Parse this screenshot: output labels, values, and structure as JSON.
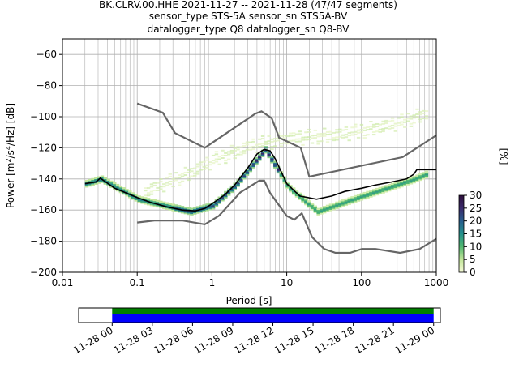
{
  "title": {
    "line1": "BK.CLRV.00.HHE   2021-11-27 -- 2021-11-28  (47/47 segments)",
    "line2": "sensor_type STS-5A sensor_sn STS5A-BV",
    "line3": "datalogger_type Q8 datalogger_sn Q8-BV"
  },
  "chart_data": [
    {
      "type": "heatmap",
      "subtype": "probabilistic power spectral density",
      "xlabel": "Period [s]",
      "ylabel_parts": [
        "Power [m",
        "2",
        "/s",
        "4",
        "/Hz] [dB]"
      ],
      "x_scale": "log",
      "xlim": [
        0.01,
        1000
      ],
      "ylim": [
        -200,
        -50
      ],
      "x_ticks": [
        0.01,
        0.1,
        1,
        10,
        100,
        1000
      ],
      "x_tick_labels": [
        "0.01",
        "0.1",
        "1",
        "10",
        "100",
        "1000"
      ],
      "y_ticks": [
        -200,
        -180,
        -160,
        -140,
        -120,
        -100,
        -80,
        -60
      ],
      "y_tick_labels": [
        "−200",
        "−180",
        "−160",
        "−140",
        "−120",
        "−100",
        "−80",
        "−60"
      ],
      "grid": true,
      "colorbar": {
        "label": "[%]",
        "range": [
          0,
          30
        ],
        "ticks": [
          0,
          5,
          10,
          15,
          20,
          25,
          30
        ],
        "tick_labels": [
          "0",
          "5",
          "10",
          "15",
          "20",
          "25",
          "30"
        ],
        "colors": [
          "#f7fbd8",
          "#c2e69a",
          "#52b870",
          "#23918c",
          "#275d8d",
          "#3a2a6b",
          "#2d0f3c"
        ]
      },
      "series": [
        {
          "role": "noise-model-high",
          "color": "#666666",
          "points": [
            [
              0.1,
              -91.5
            ],
            [
              0.22,
              -97.4
            ],
            [
              0.32,
              -110.5
            ],
            [
              0.8,
              -120
            ],
            [
              3.8,
              -98
            ],
            [
              4.6,
              -96.5
            ],
            [
              6.3,
              -101
            ],
            [
              7.9,
              -113.5
            ],
            [
              15.4,
              -120
            ],
            [
              20,
              -138.5
            ],
            [
              354.8,
              -126
            ],
            [
              1000,
              -112
            ]
          ]
        },
        {
          "role": "noise-model-low",
          "color": "#666666",
          "points": [
            [
              0.1,
              -168
            ],
            [
              0.17,
              -166.7
            ],
            [
              0.4,
              -166.7
            ],
            [
              0.8,
              -169.2
            ],
            [
              1.24,
              -163.7
            ],
            [
              2.4,
              -148.6
            ],
            [
              4.3,
              -141.1
            ],
            [
              5.0,
              -141.1
            ],
            [
              6.0,
              -149.0
            ],
            [
              10,
              -163.8
            ],
            [
              12.6,
              -166.2
            ],
            [
              15.9,
              -162.1
            ],
            [
              21.9,
              -177.5
            ],
            [
              31.6,
              -185
            ],
            [
              45,
              -187.5
            ],
            [
              70,
              -187.5
            ],
            [
              101,
              -185
            ],
            [
              154,
              -185
            ],
            [
              328,
              -187.5
            ],
            [
              600,
              -185
            ],
            [
              1000,
              -178.5
            ]
          ]
        },
        {
          "role": "mean",
          "color": "#000000",
          "points": [
            [
              0.02,
              -143
            ],
            [
              0.028,
              -142
            ],
            [
              0.032,
              -139.5
            ],
            [
              0.05,
              -146
            ],
            [
              0.1,
              -152
            ],
            [
              0.15,
              -155
            ],
            [
              0.25,
              -158
            ],
            [
              0.4,
              -160
            ],
            [
              0.6,
              -160.5
            ],
            [
              0.8,
              -159
            ],
            [
              1.0,
              -156
            ],
            [
              1.5,
              -150
            ],
            [
              2.0,
              -144
            ],
            [
              3.0,
              -133
            ],
            [
              4.0,
              -124
            ],
            [
              5.0,
              -121
            ],
            [
              6.0,
              -122
            ],
            [
              7.0,
              -127
            ],
            [
              10,
              -143
            ],
            [
              15,
              -151
            ],
            [
              25,
              -153
            ],
            [
              40,
              -151
            ],
            [
              60,
              -148
            ],
            [
              100,
              -146
            ],
            [
              150,
              -144
            ],
            [
              250,
              -142
            ],
            [
              400,
              -140
            ],
            [
              500,
              -137
            ],
            [
              550,
              -134
            ],
            [
              1000,
              -134
            ]
          ]
        }
      ],
      "density": {
        "dominant_band": [
          [
            0.02,
            -143
          ],
          [
            0.032,
            -140
          ],
          [
            0.1,
            -153
          ],
          [
            0.5,
            -161
          ],
          [
            1,
            -157
          ],
          [
            2,
            -144
          ],
          [
            5,
            -121
          ],
          [
            10,
            -145
          ],
          [
            25,
            -161
          ],
          [
            100,
            -151
          ],
          [
            500,
            -140
          ],
          [
            700,
            -137
          ]
        ],
        "scattered_high_band": [
          [
            0.1,
            -150
          ],
          [
            0.5,
            -136
          ],
          [
            1,
            -128
          ],
          [
            3,
            -119
          ],
          [
            10,
            -114
          ],
          [
            40,
            -112
          ],
          [
            100,
            -109
          ],
          [
            300,
            -104
          ],
          [
            700,
            -98
          ]
        ]
      }
    },
    {
      "type": "timeline",
      "x_tick_labels": [
        "11-28 00",
        "11-28 03",
        "11-28 06",
        "11-28 09",
        "11-28 12",
        "11-28 15",
        "11-28 18",
        "11-28 21",
        "11-29 00"
      ],
      "xlim": [
        "11-27 21:30",
        "11-29 00:30"
      ],
      "bars": [
        {
          "name": "availability",
          "color": "#008000",
          "start": "11-28 00",
          "end": "11-29 00"
        },
        {
          "name": "used",
          "color": "#0000ff",
          "start": "11-28 00",
          "end": "11-29 00"
        }
      ]
    }
  ]
}
